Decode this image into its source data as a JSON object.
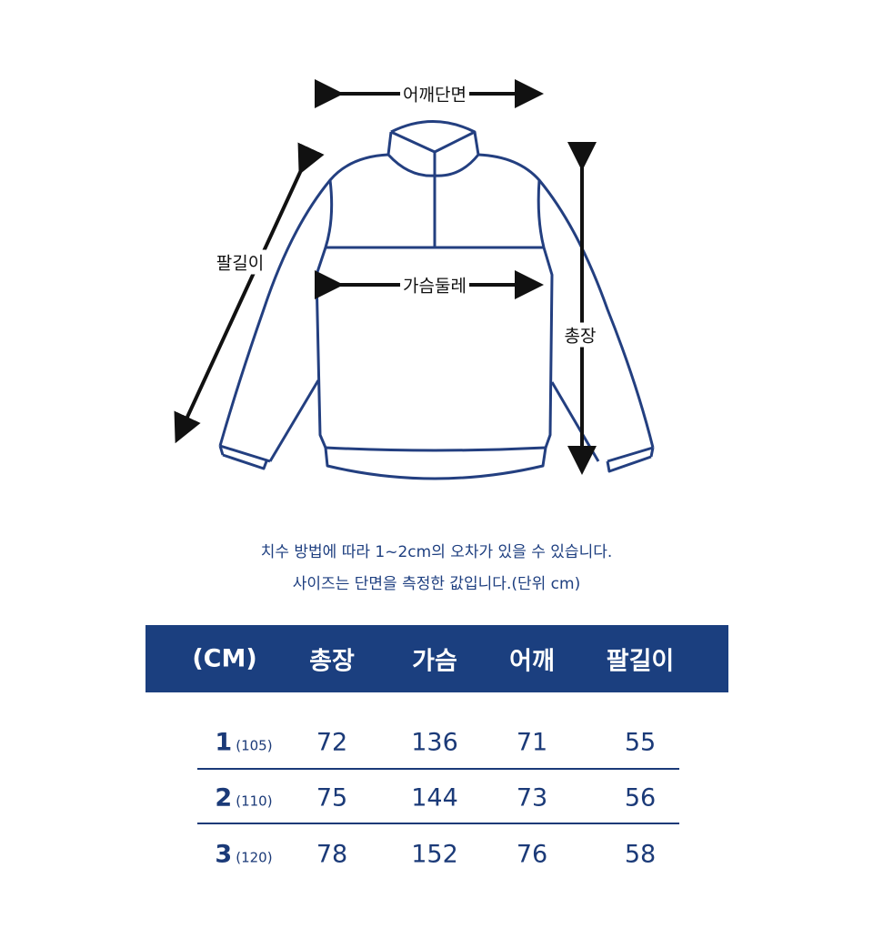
{
  "diagram": {
    "labels": {
      "shoulder": "어깨단면",
      "chest": "가슴둘레",
      "length": "총장",
      "sleeve": "팔길이"
    },
    "line_color": "#233f80"
  },
  "notes": [
    "치수 방법에 따라 1~2cm의 오차가 있을 수 있습니다.",
    "사이즈는 단면을 측정한 값입니다.(단위 cm)"
  ],
  "table": {
    "header_color": "#1b3f7f",
    "headers": [
      "(CM)",
      "총장",
      "가슴",
      "어깨",
      "팔길이"
    ],
    "rows": [
      {
        "size": "1",
        "sub": "(105)",
        "values": [
          "72",
          "136",
          "71",
          "55"
        ]
      },
      {
        "size": "2",
        "sub": "(110)",
        "values": [
          "75",
          "144",
          "73",
          "56"
        ]
      },
      {
        "size": "3",
        "sub": "(120)",
        "values": [
          "78",
          "152",
          "76",
          "58"
        ]
      }
    ]
  }
}
